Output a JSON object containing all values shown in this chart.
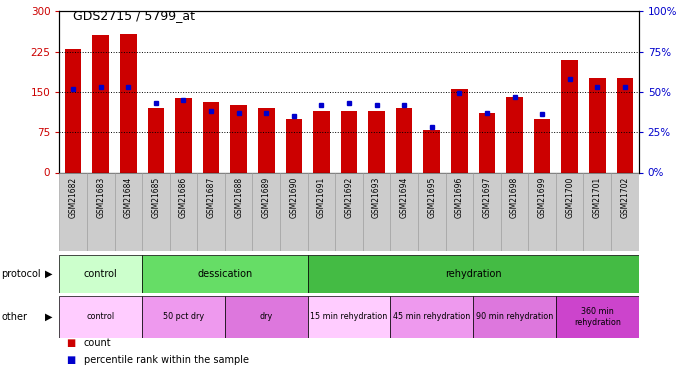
{
  "title": "GDS2715 / 5799_at",
  "samples": [
    "GSM21682",
    "GSM21683",
    "GSM21684",
    "GSM21685",
    "GSM21686",
    "GSM21687",
    "GSM21688",
    "GSM21689",
    "GSM21690",
    "GSM21691",
    "GSM21692",
    "GSM21693",
    "GSM21694",
    "GSM21695",
    "GSM21696",
    "GSM21697",
    "GSM21698",
    "GSM21699",
    "GSM21700",
    "GSM21701",
    "GSM21702"
  ],
  "count_values": [
    230,
    255,
    258,
    120,
    138,
    132,
    125,
    120,
    100,
    115,
    115,
    115,
    120,
    80,
    155,
    110,
    140,
    100,
    210,
    175,
    175
  ],
  "percentile_values": [
    52,
    53,
    53,
    43,
    45,
    38,
    37,
    37,
    35,
    42,
    43,
    42,
    42,
    28,
    49,
    37,
    47,
    36,
    58,
    53,
    53
  ],
  "bar_color": "#cc0000",
  "pct_color": "#0000cc",
  "ylim_left": [
    0,
    300
  ],
  "ylim_right": [
    0,
    100
  ],
  "yticks_left": [
    0,
    75,
    150,
    225,
    300
  ],
  "yticks_right": [
    0,
    25,
    50,
    75,
    100
  ],
  "protocol_row": {
    "label": "protocol",
    "groups": [
      {
        "text": "control",
        "start": 0,
        "end": 3,
        "color": "#ccffcc"
      },
      {
        "text": "dessication",
        "start": 3,
        "end": 9,
        "color": "#66dd66"
      },
      {
        "text": "rehydration",
        "start": 9,
        "end": 21,
        "color": "#44bb44"
      }
    ]
  },
  "other_row": {
    "label": "other",
    "groups": [
      {
        "text": "control",
        "start": 0,
        "end": 3,
        "color": "#ffccff"
      },
      {
        "text": "50 pct dry",
        "start": 3,
        "end": 6,
        "color": "#ee99ee"
      },
      {
        "text": "dry",
        "start": 6,
        "end": 9,
        "color": "#dd77dd"
      },
      {
        "text": "15 min rehydration",
        "start": 9,
        "end": 12,
        "color": "#ffccff"
      },
      {
        "text": "45 min rehydration",
        "start": 12,
        "end": 15,
        "color": "#ee99ee"
      },
      {
        "text": "90 min rehydration",
        "start": 15,
        "end": 18,
        "color": "#dd77dd"
      },
      {
        "text": "360 min\nrehydration",
        "start": 18,
        "end": 21,
        "color": "#cc44cc"
      }
    ]
  },
  "legend_items": [
    {
      "label": "count",
      "color": "#cc0000"
    },
    {
      "label": "percentile rank within the sample",
      "color": "#0000cc"
    }
  ],
  "bg_color": "#ffffff",
  "tick_label_color_left": "#cc0000",
  "tick_label_color_right": "#0000cc"
}
